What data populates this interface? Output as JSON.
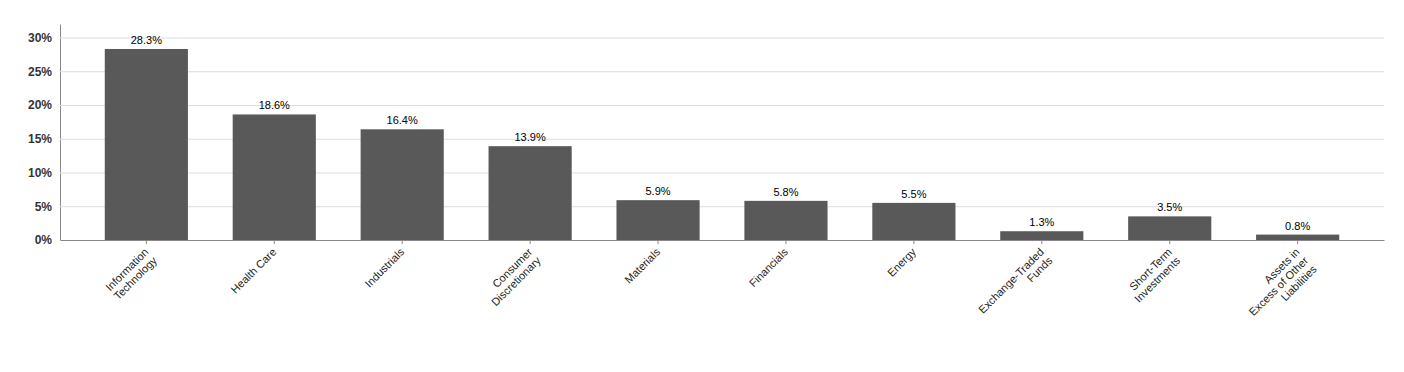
{
  "chart_data": {
    "type": "bar",
    "categories": [
      "Information\nTechnology",
      "Health Care",
      "Industrials",
      "Consumer\nDiscretionary",
      "Materials",
      "Financials",
      "Energy",
      "Exchange-Traded\nFunds",
      "Short-Term\nInvestments",
      "Assets in\nExcess of Other\nLiabilities"
    ],
    "values": [
      28.3,
      18.6,
      16.4,
      13.9,
      5.9,
      5.8,
      5.5,
      1.3,
      3.5,
      0.8
    ],
    "value_labels": [
      "28.3%",
      "18.6%",
      "16.4%",
      "13.9%",
      "5.9%",
      "5.8%",
      "5.5%",
      "1.3%",
      "3.5%",
      "0.8%"
    ],
    "data_labels": true,
    "color": "#595959",
    "ylim": [
      0,
      32
    ],
    "yticks": [
      {
        "value": 0,
        "label": "0%"
      },
      {
        "value": 5,
        "label": "5%"
      },
      {
        "value": 10,
        "label": "10%"
      },
      {
        "value": 15,
        "label": "15%"
      },
      {
        "value": 20,
        "label": "20%"
      },
      {
        "value": 25,
        "label": "25%"
      },
      {
        "value": 30,
        "label": "30%"
      }
    ],
    "grid": true
  }
}
